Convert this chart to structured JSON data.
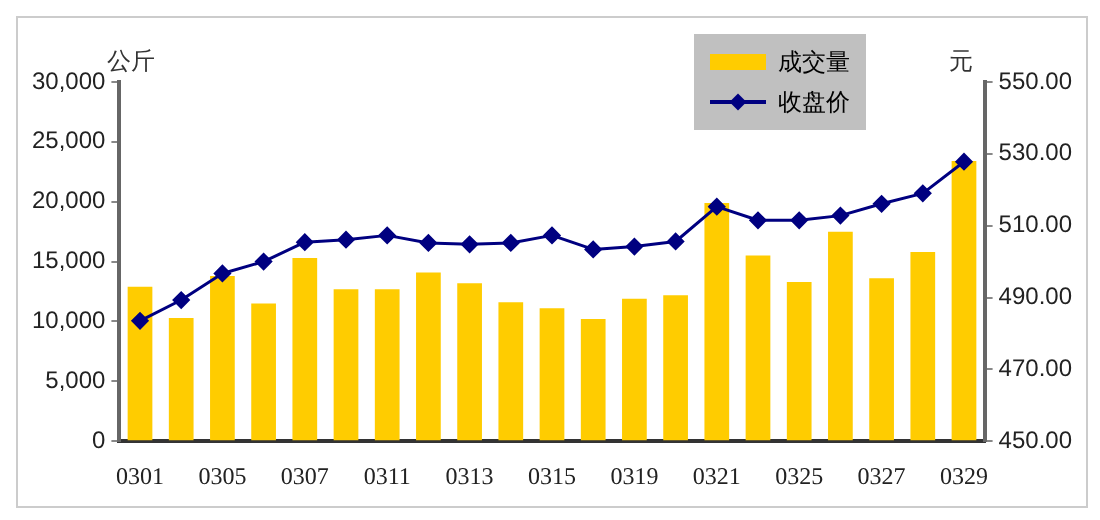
{
  "chart_data": {
    "type": "bar",
    "ylabel": "公斤",
    "y2label": "元",
    "categories": [
      "0301",
      null,
      "0305",
      null,
      "0307",
      null,
      "0311",
      null,
      "0313",
      null,
      "0315",
      null,
      "0319",
      null,
      "0321",
      null,
      "0325",
      null,
      "0327",
      null,
      "0329"
    ],
    "series": [
      {
        "name": "成交量",
        "color": "#ffcc00",
        "values": [
          12900,
          10300,
          13800,
          11500,
          15300,
          12700,
          12700,
          14100,
          13200,
          11600,
          11100,
          10200,
          11900,
          12200,
          19900,
          15500,
          13300,
          17500,
          13600,
          15800,
          23400
        ]
      },
      {
        "name": "收盘价",
        "type": "line",
        "axis": "y2",
        "color": "#000080",
        "marker": "diamond",
        "values": [
          483.5,
          489.3,
          496.7,
          500,
          505.4,
          506.1,
          507.3,
          505.2,
          504.8,
          505.2,
          507.3,
          503.4,
          504.2,
          505.6,
          515.3,
          511.5,
          511.5,
          512.8,
          516.1,
          519,
          527.8
        ]
      }
    ],
    "ylim": [
      0,
      30000
    ],
    "yticks": [
      {
        "value": 0,
        "label": "0"
      },
      {
        "value": 5000,
        "label": "5,000"
      },
      {
        "value": 10000,
        "label": "10,000"
      },
      {
        "value": 15000,
        "label": "15,000"
      },
      {
        "value": 20000,
        "label": "20,000"
      },
      {
        "value": 25000,
        "label": "25,000"
      },
      {
        "value": 30000,
        "label": "30,000"
      }
    ],
    "y2lim": [
      450,
      550
    ],
    "y2ticks": [
      {
        "value": 450,
        "label": "450.00"
      },
      {
        "value": 470,
        "label": "470.00"
      },
      {
        "value": 490,
        "label": "490.00"
      },
      {
        "value": 510,
        "label": "510.00"
      },
      {
        "value": 530,
        "label": "530.00"
      },
      {
        "value": 550,
        "label": "550.00"
      }
    ],
    "legend": "top right",
    "grid": false
  }
}
